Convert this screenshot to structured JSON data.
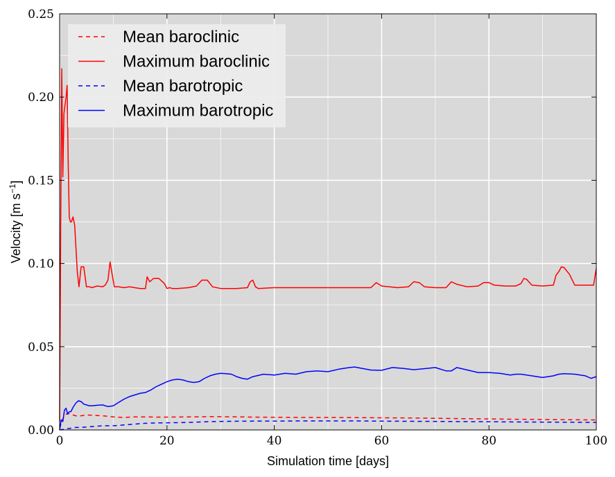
{
  "chart_data": {
    "type": "line",
    "title": "",
    "xlabel": "Simulation time [days]",
    "ylabel": "Velocity [m s",
    "ylabel_superscript": "−1",
    "ylabel_suffix": "]",
    "xlim": [
      0,
      100
    ],
    "ylim": [
      0,
      0.25
    ],
    "xticks": [
      0,
      20,
      40,
      60,
      80,
      100
    ],
    "xtick_labels": [
      "0",
      "20",
      "40",
      "60",
      "80",
      "100"
    ],
    "yticks": [
      0,
      0.05,
      0.1,
      0.15,
      0.2,
      0.25
    ],
    "ytick_labels": [
      "0.00",
      "0.05",
      "0.10",
      "0.15",
      "0.20",
      "0.25"
    ],
    "grid": true,
    "background": "#d9d9d9",
    "legend_position": "top-left",
    "series": [
      {
        "name": "Mean baroclinic",
        "color": "#ff0000",
        "style": "dashed",
        "x": [
          0,
          0.5,
          1,
          1.5,
          2,
          3,
          4,
          5,
          6,
          8,
          10,
          12,
          14,
          16,
          18,
          20,
          24,
          28,
          32,
          36,
          40,
          45,
          50,
          55,
          60,
          65,
          70,
          75,
          80,
          85,
          90,
          95,
          100
        ],
        "y": [
          0.001,
          0.006,
          0.009,
          0.01,
          0.0095,
          0.0085,
          0.0085,
          0.009,
          0.0088,
          0.0085,
          0.0078,
          0.0075,
          0.0078,
          0.0078,
          0.0077,
          0.0077,
          0.0078,
          0.008,
          0.0079,
          0.0077,
          0.0076,
          0.0075,
          0.0075,
          0.0074,
          0.0073,
          0.0072,
          0.007,
          0.0068,
          0.0066,
          0.0064,
          0.0063,
          0.0061,
          0.006
        ]
      },
      {
        "name": "Maximum baroclinic",
        "color": "#ff0000",
        "style": "solid",
        "x": [
          0,
          0.2,
          0.4,
          0.6,
          0.8,
          1.0,
          1.2,
          1.4,
          1.6,
          1.8,
          2.0,
          2.2,
          2.5,
          2.8,
          3.0,
          3.3,
          3.6,
          4.0,
          4.5,
          5.0,
          5.3,
          5.6,
          6,
          7,
          8,
          8.5,
          9,
          9.4,
          9.8,
          10.2,
          11,
          12,
          13,
          14,
          15,
          16,
          16.3,
          16.8,
          17.5,
          18.5,
          19.5,
          20,
          20.5,
          21,
          22,
          24,
          25.5,
          26.5,
          27.5,
          28.5,
          30,
          33,
          35,
          35.5,
          36,
          36.5,
          37,
          40,
          45,
          50,
          55,
          58,
          59,
          60,
          63,
          65,
          66,
          67,
          68,
          70,
          72,
          73,
          74,
          76,
          78,
          79,
          80,
          81,
          83,
          85,
          86,
          86.5,
          87,
          88,
          90,
          92,
          92.5,
          93,
          93.5,
          94,
          95,
          96,
          98,
          99.5,
          100
        ],
        "y": [
          0.005,
          0.12,
          0.217,
          0.152,
          0.19,
          0.195,
          0.2,
          0.207,
          0.16,
          0.128,
          0.125,
          0.125,
          0.128,
          0.123,
          0.112,
          0.095,
          0.086,
          0.098,
          0.098,
          0.086,
          0.086,
          0.086,
          0.0855,
          0.0865,
          0.086,
          0.087,
          0.09,
          0.101,
          0.093,
          0.086,
          0.086,
          0.0855,
          0.086,
          0.0855,
          0.085,
          0.085,
          0.092,
          0.089,
          0.091,
          0.091,
          0.088,
          0.085,
          0.0855,
          0.085,
          0.085,
          0.0855,
          0.0865,
          0.09,
          0.09,
          0.086,
          0.085,
          0.085,
          0.0855,
          0.089,
          0.09,
          0.086,
          0.085,
          0.0855,
          0.0855,
          0.0855,
          0.0855,
          0.0855,
          0.0885,
          0.0865,
          0.0855,
          0.086,
          0.089,
          0.0885,
          0.086,
          0.0855,
          0.0855,
          0.089,
          0.0875,
          0.086,
          0.0865,
          0.0885,
          0.0885,
          0.087,
          0.0865,
          0.0865,
          0.088,
          0.091,
          0.0905,
          0.087,
          0.0865,
          0.087,
          0.093,
          0.095,
          0.098,
          0.0975,
          0.0935,
          0.087,
          0.087,
          0.087,
          0.097
        ]
      },
      {
        "name": "Mean barotropic",
        "color": "#0000ff",
        "style": "dashed",
        "x": [
          0,
          1,
          2,
          3,
          4,
          6,
          8,
          10,
          12,
          14,
          16,
          18,
          20,
          24,
          28,
          32,
          36,
          40,
          45,
          50,
          55,
          60,
          65,
          70,
          75,
          80,
          85,
          90,
          95,
          100
        ],
        "y": [
          0.0,
          0.0005,
          0.001,
          0.0015,
          0.0015,
          0.002,
          0.0025,
          0.0025,
          0.003,
          0.0035,
          0.004,
          0.0042,
          0.0043,
          0.0045,
          0.005,
          0.0052,
          0.0053,
          0.0053,
          0.0054,
          0.0054,
          0.0054,
          0.0053,
          0.0052,
          0.0051,
          0.005,
          0.0049,
          0.0048,
          0.0047,
          0.0046,
          0.0045
        ]
      },
      {
        "name": "Maximum barotropic",
        "color": "#0000ff",
        "style": "solid",
        "x": [
          0,
          0.3,
          0.6,
          0.9,
          1.2,
          1.5,
          1.8,
          2.1,
          2.5,
          3.0,
          3.5,
          4.0,
          4.5,
          5.0,
          5.5,
          6,
          7,
          8,
          9,
          10,
          11,
          12,
          13,
          14,
          15,
          16,
          17,
          18,
          19,
          20,
          21,
          22,
          23,
          24,
          25,
          26,
          27,
          28,
          29,
          30,
          31,
          32,
          33,
          34,
          35,
          36,
          38,
          40,
          42,
          44,
          46,
          48,
          50,
          52,
          54,
          55,
          56,
          58,
          60,
          62,
          64,
          66,
          68,
          70,
          72,
          73,
          74,
          76,
          78,
          80,
          82,
          84,
          85,
          86,
          88,
          90,
          92,
          93,
          94,
          96,
          98,
          99,
          100
        ],
        "y": [
          0.0,
          0.006,
          0.005,
          0.012,
          0.013,
          0.0095,
          0.011,
          0.011,
          0.0135,
          0.016,
          0.0175,
          0.017,
          0.0155,
          0.015,
          0.0145,
          0.0145,
          0.0148,
          0.015,
          0.014,
          0.0145,
          0.0165,
          0.0185,
          0.02,
          0.021,
          0.022,
          0.0225,
          0.024,
          0.026,
          0.0275,
          0.029,
          0.03,
          0.0305,
          0.03,
          0.029,
          0.0285,
          0.029,
          0.031,
          0.0325,
          0.0335,
          0.034,
          0.0338,
          0.0335,
          0.032,
          0.031,
          0.0305,
          0.032,
          0.0335,
          0.033,
          0.034,
          0.0335,
          0.035,
          0.0355,
          0.035,
          0.0365,
          0.0375,
          0.0378,
          0.0372,
          0.036,
          0.0358,
          0.0375,
          0.037,
          0.0362,
          0.0368,
          0.0375,
          0.0355,
          0.0355,
          0.0375,
          0.036,
          0.0345,
          0.0345,
          0.034,
          0.033,
          0.0335,
          0.0335,
          0.0325,
          0.0315,
          0.0325,
          0.0335,
          0.0338,
          0.0335,
          0.0325,
          0.031,
          0.032
        ]
      }
    ]
  }
}
